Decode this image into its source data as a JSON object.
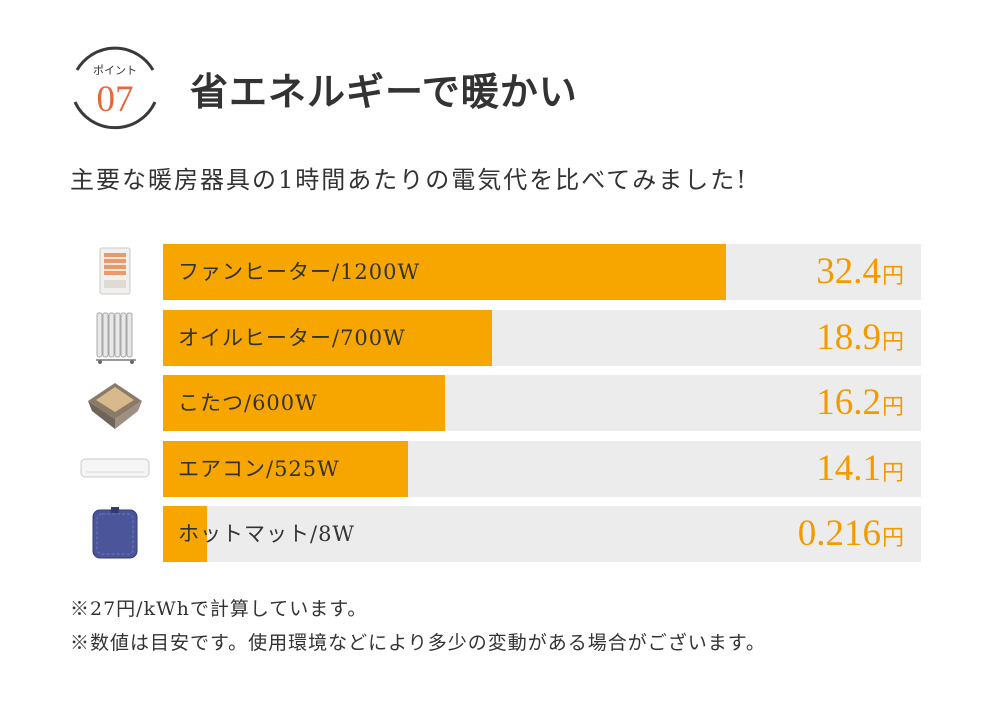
{
  "badge": {
    "label": "ポイント",
    "number": "07",
    "accent_color": "#e8663d"
  },
  "title": "省エネルギーで暖かい",
  "subtitle": "主要な暖房器具の1時間あたりの電気代を比べてみました!",
  "chart_data": {
    "type": "bar",
    "orientation": "horizontal",
    "unit": "円",
    "bar_color": "#f7a600",
    "track_color": "#ececec",
    "value_color": "#f29a00",
    "categories": [
      "ファンヒーター/1200W",
      "オイルヒーター/700W",
      "こたつ/600W",
      "エアコン/525W",
      "ホットマット/8W"
    ],
    "values": [
      32.4,
      18.9,
      16.2,
      14.1,
      0.216
    ],
    "value_labels": [
      "32.4",
      "18.9",
      "16.2",
      "14.1",
      "0.216"
    ],
    "icons": [
      "fan-heater-icon",
      "oil-heater-icon",
      "kotatsu-icon",
      "air-conditioner-icon",
      "hot-mat-icon"
    ]
  },
  "notes": [
    "※27円/kWhで計算しています。",
    "※数値は目安です。使用環境などにより多少の変動がある場合がございます。"
  ]
}
